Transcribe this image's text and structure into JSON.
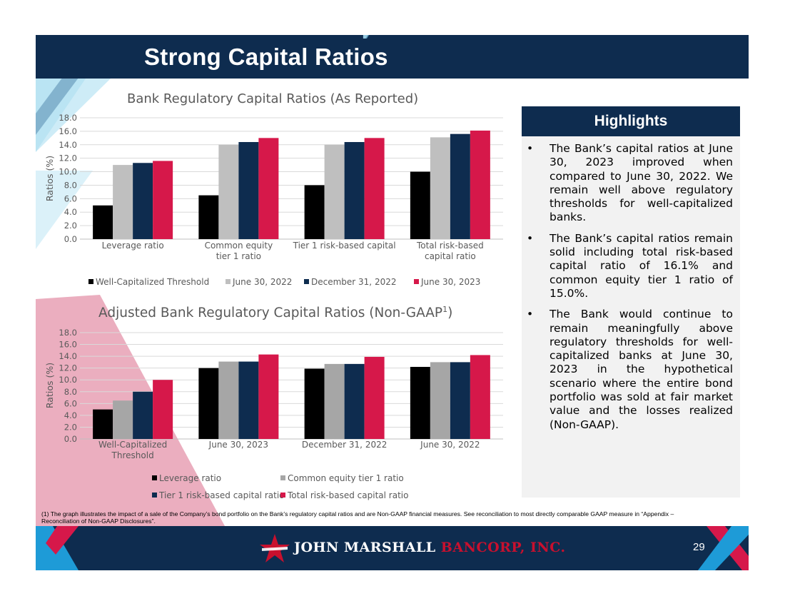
{
  "slide": {
    "title": "Strong Capital Ratios",
    "page_number": "29",
    "footnote": "(1) The graph illustrates the impact of a sale of the Company’s bond portfolio on the Bank’s regulatory capital ratios and are Non-GAAP financial measures. See reconciliation to most directly comparable GAAP measure in “Appendix – Reconciliation of Non-GAAP Disclosures”.",
    "logo": {
      "name_part1": "JOHN MARSHALL",
      "name_part2": "BANCORP, INC."
    },
    "colors": {
      "navy": "#0e2c4f",
      "crimson": "#d6184a",
      "black": "#000000",
      "gray_light": "#bfbfbf",
      "gray": "#a6a6a6",
      "light_blue": "#a6dcf0",
      "pink": "#e8a0b4"
    }
  },
  "highlights": {
    "header": "Highlights",
    "bullet_symbol": "•",
    "bullets": [
      "The Bank’s capital ratios at June 30, 2023 improved when compared to June 30, 2022. We remain well above regulatory thresholds for well-capitalized banks.",
      "The Bank’s capital ratios remain solid including total risk-based capital ratio of 16.1% and common equity tier 1 ratio of 15.0%.",
      "The Bank would continue to remain meaningfully above regulatory thresholds for well-capitalized banks at June 30, 2023 in the hypothetical scenario where the entire bond portfolio was sold at fair market value and the losses realized (Non-GAAP)."
    ]
  },
  "chart_data": [
    {
      "type": "bar",
      "title": "Bank Regulatory Capital Ratios (As Reported)",
      "ylabel": "Ratios (%)",
      "ylim": [
        0,
        18
      ],
      "yticks": [
        "0.0",
        "2.0",
        "4.0",
        "6.0",
        "8.0",
        "10.0",
        "12.0",
        "14.0",
        "16.0",
        "18.0"
      ],
      "grid": true,
      "legend_position": "bottom",
      "categories": [
        [
          "Leverage ratio"
        ],
        [
          "Common equity",
          "tier 1 ratio"
        ],
        [
          "Tier 1 risk-based capital"
        ],
        [
          "Total risk-based",
          "capital ratio"
        ]
      ],
      "series": [
        {
          "name": "Well-Capitalized Threshold",
          "color": "#000000",
          "values": [
            5.0,
            6.5,
            8.0,
            10.0
          ]
        },
        {
          "name": "June 30, 2022",
          "color": "#bfbfbf",
          "values": [
            11.0,
            14.0,
            14.0,
            15.1
          ]
        },
        {
          "name": "December 31, 2022",
          "color": "#0e2c4f",
          "values": [
            11.3,
            14.4,
            14.4,
            15.6
          ]
        },
        {
          "name": "June 30, 2023",
          "color": "#d6184a",
          "values": [
            11.6,
            15.0,
            15.0,
            16.1
          ]
        }
      ]
    },
    {
      "type": "bar",
      "title": "Adjusted Bank Regulatory Capital Ratios (Non-GAAP",
      "title_sup": "1",
      "title_end": ")",
      "ylabel": "Ratios (%)",
      "ylim": [
        0,
        18
      ],
      "yticks": [
        "0.0",
        "2.0",
        "4.0",
        "6.0",
        "8.0",
        "10.0",
        "12.0",
        "14.0",
        "16.0",
        "18.0"
      ],
      "grid": true,
      "legend_position": "bottom",
      "categories": [
        [
          "Well-Capitalized",
          "Threshold"
        ],
        [
          "June 30, 2023"
        ],
        [
          "December 31, 2022"
        ],
        [
          "June 30, 2022"
        ]
      ],
      "series": [
        {
          "name": "Leverage ratio",
          "color": "#000000",
          "values": [
            5.0,
            12.0,
            11.9,
            12.2
          ]
        },
        {
          "name": "Common equity tier 1 ratio",
          "color": "#a6a6a6",
          "values": [
            6.5,
            13.1,
            12.7,
            13.0
          ]
        },
        {
          "name": "Tier 1 risk-based capital ratio",
          "color": "#0e2c4f",
          "values": [
            8.0,
            13.1,
            12.7,
            13.0
          ]
        },
        {
          "name": "Total risk-based capital ratio",
          "color": "#d6184a",
          "values": [
            10.0,
            14.3,
            13.9,
            14.2
          ]
        }
      ]
    }
  ]
}
